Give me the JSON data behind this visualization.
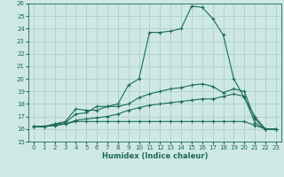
{
  "xlabel": "Humidex (Indice chaleur)",
  "bg_color": "#cfe8e4",
  "grid_color": "#b0d4ce",
  "line_color": "#1a6b5a",
  "xlim": [
    -0.5,
    23.5
  ],
  "ylim": [
    15,
    26
  ],
  "xticks": [
    0,
    1,
    2,
    3,
    4,
    5,
    6,
    7,
    8,
    9,
    10,
    11,
    12,
    13,
    14,
    15,
    16,
    17,
    18,
    19,
    20,
    21,
    22,
    23
  ],
  "yticks": [
    15,
    16,
    17,
    18,
    19,
    20,
    21,
    22,
    23,
    24,
    25,
    26
  ],
  "series": [
    [
      16.2,
      16.2,
      16.4,
      16.6,
      17.6,
      17.5,
      17.5,
      17.8,
      18.0,
      19.5,
      20.0,
      23.7,
      23.7,
      23.8,
      24.0,
      25.8,
      25.7,
      24.8,
      23.5,
      20.0,
      18.5,
      17.0,
      16.0,
      16.0
    ],
    [
      16.2,
      16.2,
      16.4,
      16.5,
      17.2,
      17.3,
      17.8,
      17.8,
      17.8,
      18.0,
      18.5,
      18.8,
      19.0,
      19.2,
      19.3,
      19.5,
      19.6,
      19.4,
      18.9,
      19.2,
      19.0,
      16.8,
      16.0,
      16.0
    ],
    [
      16.2,
      16.2,
      16.3,
      16.4,
      16.7,
      16.8,
      16.9,
      17.0,
      17.2,
      17.5,
      17.7,
      17.9,
      18.0,
      18.1,
      18.2,
      18.3,
      18.4,
      18.4,
      18.6,
      18.8,
      18.6,
      16.5,
      16.0,
      16.0
    ],
    [
      16.2,
      16.2,
      16.3,
      16.4,
      16.6,
      16.6,
      16.6,
      16.6,
      16.6,
      16.6,
      16.6,
      16.6,
      16.6,
      16.6,
      16.6,
      16.6,
      16.6,
      16.6,
      16.6,
      16.6,
      16.6,
      16.3,
      16.0,
      16.0
    ]
  ]
}
